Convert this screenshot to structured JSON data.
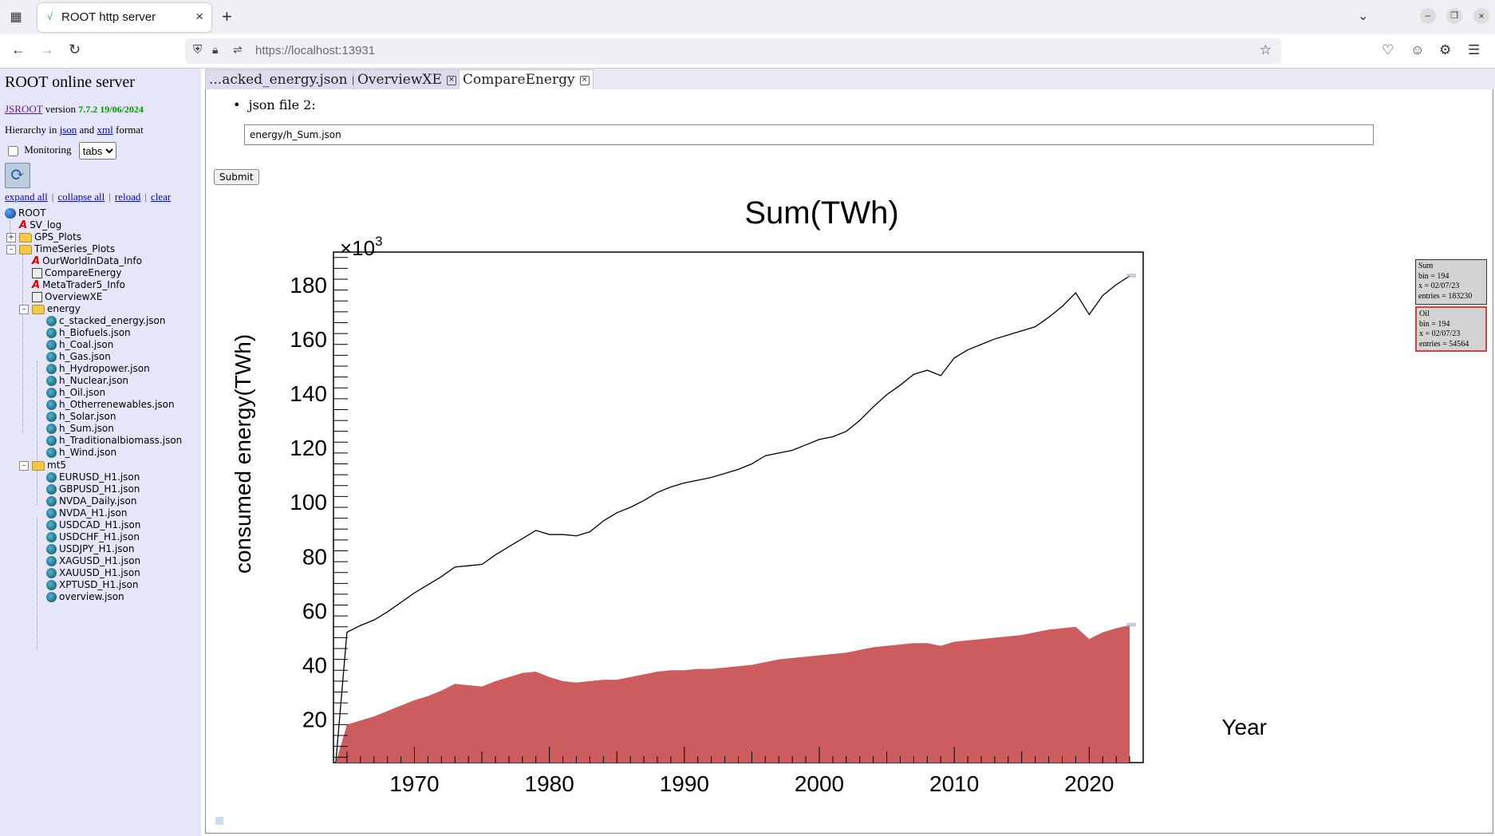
{
  "browser": {
    "tab_title": "ROOT http server",
    "url": "https://localhost:13931"
  },
  "left": {
    "title": "ROOT online server",
    "jsroot_link": "JSROOT",
    "version_word": "version",
    "version_num": "7.7.2 19/06/2024",
    "hier_prefix": "Hierarchy in",
    "json_link": "json",
    "and_word": "and",
    "xml_link": "xml",
    "format_word": "format",
    "monitoring_label": "Monitoring",
    "layout_select": "tabs",
    "actions": [
      "expand all",
      "collapse all",
      "reload",
      "clear"
    ],
    "tree": [
      {
        "label": "ROOT",
        "icon": "root-icon"
      },
      {
        "label": "SV_log",
        "icon": "graph-icon"
      },
      {
        "label": "GPS_Plots",
        "icon": "folder-icon"
      },
      {
        "label": "TimeSeries_Plots",
        "icon": "folder-icon"
      },
      {
        "label": "OurWorldInData_Info",
        "icon": "graph-icon"
      },
      {
        "label": "CompareEnergy",
        "icon": "canvas-icon"
      },
      {
        "label": "MetaTrader5_Info",
        "icon": "graph-icon"
      },
      {
        "label": "OverviewXE",
        "icon": "canvas-icon"
      },
      {
        "label": "energy",
        "icon": "folder-icon"
      },
      {
        "label": "c_stacked_energy.json",
        "icon": "json-icon"
      },
      {
        "label": "h_Biofuels.json",
        "icon": "json-icon"
      },
      {
        "label": "h_Coal.json",
        "icon": "json-icon"
      },
      {
        "label": "h_Gas.json",
        "icon": "json-icon"
      },
      {
        "label": "h_Hydropower.json",
        "icon": "json-icon"
      },
      {
        "label": "h_Nuclear.json",
        "icon": "json-icon"
      },
      {
        "label": "h_Oil.json",
        "icon": "json-icon"
      },
      {
        "label": "h_Otherrenewables.json",
        "icon": "json-icon"
      },
      {
        "label": "h_Solar.json",
        "icon": "json-icon"
      },
      {
        "label": "h_Sum.json",
        "icon": "json-icon"
      },
      {
        "label": "h_Traditionalbiomass.json",
        "icon": "json-icon"
      },
      {
        "label": "h_Wind.json",
        "icon": "json-icon"
      },
      {
        "label": "mt5",
        "icon": "folder-icon"
      },
      {
        "label": "EURUSD_H1.json",
        "icon": "json-icon"
      },
      {
        "label": "GBPUSD_H1.json",
        "icon": "json-icon"
      },
      {
        "label": "NVDA_Daily.json",
        "icon": "json-icon"
      },
      {
        "label": "NVDA_H1.json",
        "icon": "json-icon"
      },
      {
        "label": "USDCAD_H1.json",
        "icon": "json-icon"
      },
      {
        "label": "USDCHF_H1.json",
        "icon": "json-icon"
      },
      {
        "label": "USDJPY_H1.json",
        "icon": "json-icon"
      },
      {
        "label": "XAGUSD_H1.json",
        "icon": "json-icon"
      },
      {
        "label": "XAUUSD_H1.json",
        "icon": "json-icon"
      },
      {
        "label": "XPTUSD_H1.json",
        "icon": "json-icon"
      },
      {
        "label": "overview.json",
        "icon": "json-icon"
      }
    ]
  },
  "main": {
    "tabs": [
      "...acked_energy.json",
      "OverviewXE",
      "CompareEnergy"
    ],
    "json2_label": "json file 2:",
    "json2_value": "energy/h_Sum.json",
    "submit_label": "Submit"
  },
  "tooltips": {
    "sum": [
      "Sum",
      "bin = 194",
      "x = 02/07/23",
      "entries = 183230"
    ],
    "oil": [
      "Oil",
      "bin = 194",
      "x = 02/07/23",
      "entries = 54564"
    ]
  },
  "colors": {
    "oil_fill": "#cd5c5f",
    "sum_line": "#000000",
    "panel_bg": "#e6e6fa"
  },
  "chart_data": {
    "type": "line",
    "title": "Sum(TWh)",
    "xlabel": "Year",
    "ylabel": "consumed energy(TWh)",
    "y_exponent_label": "×10",
    "y_exponent_sup": "3",
    "xlim": [
      1964,
      2024
    ],
    "ylim": [
      4,
      192
    ],
    "x_ticks": [
      1970,
      1980,
      1990,
      2000,
      2010,
      2020
    ],
    "y_ticks": [
      20,
      40,
      60,
      80,
      100,
      120,
      140,
      160,
      180
    ],
    "series": [
      {
        "name": "Sum",
        "style": "line",
        "x": [
          1965,
          1966,
          1967,
          1968,
          1969,
          1970,
          1971,
          1972,
          1973,
          1974,
          1975,
          1976,
          1977,
          1978,
          1979,
          1980,
          1981,
          1982,
          1983,
          1984,
          1985,
          1986,
          1987,
          1988,
          1989,
          1990,
          1991,
          1992,
          1993,
          1994,
          1995,
          1996,
          1997,
          1998,
          1999,
          2000,
          2001,
          2002,
          2003,
          2004,
          2005,
          2006,
          2007,
          2008,
          2009,
          2010,
          2011,
          2012,
          2013,
          2014,
          2015,
          2016,
          2017,
          2018,
          2019,
          2020,
          2021,
          2022,
          2023
        ],
        "values": [
          52,
          54.5,
          56.5,
          59.5,
          63,
          66.5,
          69.5,
          72.5,
          76,
          76.5,
          77,
          80.5,
          83.5,
          86.5,
          89.5,
          88,
          88,
          87.5,
          89,
          93,
          96,
          98,
          100.5,
          103.5,
          105.5,
          107,
          108,
          109,
          110.5,
          112,
          114,
          117,
          118,
          119,
          121,
          123,
          124,
          126,
          130,
          135,
          139.5,
          143,
          147,
          148.5,
          146.5,
          153,
          156,
          158,
          160,
          161.5,
          163,
          164.5,
          168,
          172,
          177,
          169,
          176,
          180,
          183.2
        ]
      },
      {
        "name": "Oil",
        "style": "area",
        "x": [
          1965,
          1966,
          1967,
          1968,
          1969,
          1970,
          1971,
          1972,
          1973,
          1974,
          1975,
          1976,
          1977,
          1978,
          1979,
          1980,
          1981,
          1982,
          1983,
          1984,
          1985,
          1986,
          1987,
          1988,
          1989,
          1990,
          1991,
          1992,
          1993,
          1994,
          1995,
          1996,
          1997,
          1998,
          1999,
          2000,
          2001,
          2002,
          2003,
          2004,
          2005,
          2006,
          2007,
          2008,
          2009,
          2010,
          2011,
          2012,
          2013,
          2014,
          2015,
          2016,
          2017,
          2018,
          2019,
          2020,
          2021,
          2022,
          2023
        ],
        "values": [
          18,
          19.5,
          21,
          23,
          25,
          27,
          28.5,
          30.5,
          33,
          32.5,
          32,
          34,
          35.5,
          37,
          37.5,
          35.5,
          34,
          33.5,
          34,
          34.5,
          34.5,
          35.5,
          36.5,
          37.5,
          38,
          38,
          38.5,
          38.5,
          39,
          39.5,
          40,
          41,
          42,
          42.5,
          43,
          43.5,
          44,
          44.5,
          45.5,
          46.5,
          47,
          47.5,
          48,
          48,
          47,
          48.5,
          49,
          49.5,
          50,
          50.5,
          51,
          52,
          53,
          53.5,
          54,
          49.5,
          52,
          53.5,
          54.6
        ]
      }
    ]
  }
}
